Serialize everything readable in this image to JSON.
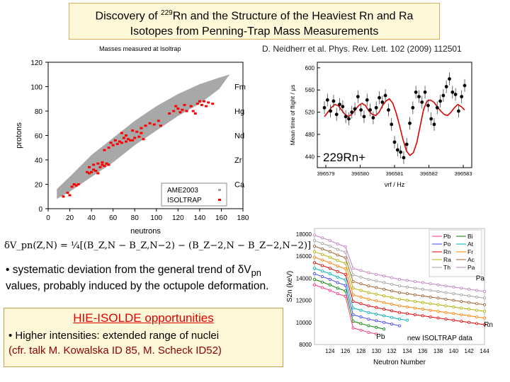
{
  "title": {
    "line1_prefix": "Discovery of ",
    "sup": "229",
    "line1_suffix": "Rn and the Structure of the Heaviest Rn and Ra",
    "line2": "Isotopes from Penning-Trap Mass Measurements"
  },
  "citation": "D. Neidherr et al. Phys. Rev. Lett. 102 (2009) 112501",
  "formula": "δV_pn(Z,N) = ¼[(B_Z,N − B_Z,N−2) − (B_Z−2,N − B_Z−2,N−2)]",
  "bullet1": {
    "pre": "• systematic deviation from the general trend of ",
    "delta": "δV",
    "sub": "pn",
    "post": " values, probably induced by the octupole deformation."
  },
  "hie": {
    "title": "HIE-ISOLDE opportunities",
    "line1": "• Higher intensities: extended range of nuclei",
    "line2": "(cfr. talk M. Kowalska ID 85, M. Scheck ID52)"
  },
  "chart_data": [
    {
      "type": "scatter",
      "title": "Masses measured at Isoltrap",
      "xlabel": "neutrons",
      "ylabel": "protons",
      "xlim": [
        0,
        180
      ],
      "ylim": [
        0,
        120
      ],
      "xticks": [
        0,
        20,
        40,
        60,
        80,
        100,
        120,
        140,
        160,
        180
      ],
      "yticks": [
        0,
        20,
        40,
        60,
        80,
        100,
        120
      ],
      "element_labels": [
        {
          "name": "Fm",
          "z": 100
        },
        {
          "name": "Hg",
          "z": 80
        },
        {
          "name": "Nd",
          "z": 60
        },
        {
          "name": "Zr",
          "z": 40
        },
        {
          "name": "Ca",
          "z": 20
        }
      ],
      "legend": [
        "AME2003",
        "ISOLTRAP"
      ],
      "series": [
        {
          "name": "ISOLTRAP",
          "color": "#ff0000",
          "points": [
            [
              14,
              10
            ],
            [
              18,
              13
            ],
            [
              20,
              11
            ],
            [
              22,
              18
            ],
            [
              26,
              19
            ],
            [
              24,
              20
            ],
            [
              28,
              20
            ],
            [
              36,
              30
            ],
            [
              38,
              29
            ],
            [
              40,
              30
            ],
            [
              42,
              32
            ],
            [
              44,
              31
            ],
            [
              46,
              29
            ],
            [
              48,
              34
            ],
            [
              50,
              36
            ],
            [
              52,
              35
            ],
            [
              38,
              34
            ],
            [
              42,
              36
            ],
            [
              46,
              37
            ],
            [
              50,
              38
            ],
            [
              54,
              37
            ],
            [
              56,
              36
            ],
            [
              52,
              48
            ],
            [
              56,
              50
            ],
            [
              60,
              52
            ],
            [
              64,
              53
            ],
            [
              68,
              54
            ],
            [
              72,
              55
            ],
            [
              76,
              56
            ],
            [
              58,
              54
            ],
            [
              62,
              56
            ],
            [
              66,
              55
            ],
            [
              70,
              58
            ],
            [
              74,
              57
            ],
            [
              78,
              56
            ],
            [
              80,
              58
            ],
            [
              84,
              59
            ],
            [
              88,
              57
            ],
            [
              86,
              62
            ],
            [
              82,
              63
            ],
            [
              78,
              64
            ],
            [
              72,
              60
            ],
            [
              68,
              62
            ],
            [
              86,
              66
            ],
            [
              90,
              68
            ],
            [
              94,
              70
            ],
            [
              98,
              69
            ],
            [
              102,
              72
            ],
            [
              104,
              68
            ],
            [
              112,
              78
            ],
            [
              116,
              80
            ],
            [
              120,
              82
            ],
            [
              124,
              81
            ],
            [
              128,
              80
            ],
            [
              132,
              84
            ],
            [
              134,
              80
            ],
            [
              136,
              78
            ],
            [
              138,
              86
            ],
            [
              142,
              85
            ],
            [
              146,
              84
            ],
            [
              140,
              88
            ],
            [
              144,
              88
            ],
            [
              148,
              87
            ],
            [
              152,
              86
            ],
            [
              126,
              85
            ],
            [
              118,
              84
            ],
            [
              122,
              79
            ]
          ]
        }
      ]
    },
    {
      "type": "line",
      "xlabel": "νrf / Hz",
      "ylabel": "Mean time of flight / μs",
      "ylim": [
        420,
        610
      ],
      "yticks": [
        440,
        480,
        520,
        560,
        600
      ],
      "xticks": [
        "396579",
        "396580",
        "396581",
        "396582",
        "396583"
      ],
      "annotation": "229Rn+",
      "fit_y": [
        512,
        520,
        528,
        534,
        532,
        524,
        516,
        512,
        516,
        524,
        532,
        536,
        532,
        522,
        516,
        514,
        520,
        532,
        540,
        544,
        536,
        518,
        495,
        470,
        450,
        442,
        447,
        465,
        495,
        525,
        540,
        542,
        538,
        530,
        522,
        516,
        514,
        520,
        528,
        534,
        530,
        524
      ],
      "points_y": [
        528,
        542,
        522,
        540,
        516,
        534,
        530,
        512,
        508,
        520,
        526,
        548,
        524,
        512,
        542,
        524,
        510,
        528,
        546,
        538,
        550,
        524,
        498,
        466,
        452,
        448,
        438,
        462,
        500,
        528,
        556,
        548,
        538,
        556,
        532,
        508,
        498,
        528,
        540,
        550,
        566,
        580,
        556,
        552,
        522,
        548,
        568
      ]
    },
    {
      "type": "line",
      "xlabel": "Neutron Number",
      "ylabel": "S2n (keV)",
      "x": [
        122,
        123,
        124,
        125,
        126,
        127,
        128,
        129,
        130,
        131,
        132,
        133,
        134,
        135,
        136,
        137,
        138,
        139,
        140,
        141,
        142,
        143,
        144
      ],
      "ylim": [
        8000,
        18500
      ],
      "yticks": [
        8000,
        10000,
        12000,
        14000,
        16000,
        18000
      ],
      "xticks": [
        124,
        126,
        128,
        130,
        132,
        134,
        136,
        138,
        140,
        142,
        144
      ],
      "legend_left": [
        "Pb",
        "Po",
        "Rn",
        "Ra",
        "Th"
      ],
      "legend_right": [
        "Bi",
        "At",
        "Fr",
        "Ac",
        "Pa"
      ],
      "annotations": [
        "Pa",
        "Rn",
        "Pb",
        "new ISOLTRAP data"
      ],
      "series": [
        {
          "name": "Pa",
          "color": "#c080c0",
          "values": [
            17900,
            17650,
            17400,
            17100,
            16850,
            14900,
            14700,
            14500,
            14350,
            14200,
            14050,
            13900,
            13800,
            13700,
            13600,
            13500,
            13400,
            13300,
            13200,
            13100,
            13000,
            12900,
            12800
          ]
        },
        {
          "name": "Th",
          "color": "#a0a0a0",
          "values": [
            17400,
            17150,
            16900,
            16600,
            16350,
            14300,
            14100,
            13900,
            13750,
            13600,
            13450,
            13300,
            13200,
            13100,
            13000,
            12900,
            12800,
            12700,
            12600,
            12500,
            12400,
            12300,
            12200
          ]
        },
        {
          "name": "Ac",
          "color": "#a06030",
          "values": [
            16900,
            16650,
            16400,
            16100,
            15850,
            13700,
            13500,
            13300,
            13150,
            13000,
            12850,
            12700,
            12600,
            12500,
            12400,
            12300,
            12200,
            12100,
            12000,
            11900,
            11800,
            11700,
            11600
          ]
        },
        {
          "name": "Ra",
          "color": "#b0b000",
          "values": [
            16400,
            16150,
            15900,
            15600,
            15350,
            13100,
            12900,
            12700,
            12550,
            12400,
            12250,
            12100,
            12000,
            11900,
            11800,
            11700,
            11600,
            11500,
            11400,
            11300,
            11200,
            11100,
            11000
          ]
        },
        {
          "name": "Fr",
          "color": "#ff8000",
          "values": [
            15900,
            15650,
            15400,
            15100,
            14850,
            12500,
            12300,
            12100,
            11950,
            11800,
            11650,
            11500,
            11400,
            11300,
            11200,
            11100,
            11000,
            10900,
            10800,
            10700,
            10600,
            10500,
            10400
          ]
        },
        {
          "name": "Rn",
          "color": "#e00000",
          "values": [
            15400,
            15150,
            14900,
            14600,
            14350,
            11900,
            11700,
            11500,
            11350,
            11200,
            11050,
            10900,
            10800,
            10700,
            10600,
            10500,
            10400,
            10300,
            10200,
            10100,
            10000,
            9900,
            9800
          ]
        },
        {
          "name": "At",
          "color": "#00b0b0",
          "values": [
            14900,
            14650,
            14400,
            14100,
            13850,
            11300,
            11100,
            10900,
            10750,
            10600,
            10450,
            10300,
            10200,
            null,
            null,
            null,
            null,
            null,
            null,
            null,
            null,
            null,
            null
          ]
        },
        {
          "name": "Po",
          "color": "#4040ff",
          "values": [
            14400,
            14150,
            13900,
            13600,
            13350,
            10700,
            10500,
            10300,
            10150,
            10000,
            9850,
            9700,
            null,
            null,
            null,
            null,
            null,
            null,
            null,
            null,
            null,
            null,
            null
          ]
        },
        {
          "name": "Bi",
          "color": "#008000",
          "values": [
            13900,
            13650,
            13400,
            13100,
            12850,
            10100,
            9900,
            9700,
            9550,
            9400,
            null,
            null,
            null,
            null,
            null,
            null,
            null,
            null,
            null,
            null,
            null,
            null,
            null
          ]
        },
        {
          "name": "Pb",
          "color": "#ff3080",
          "values": [
            13400,
            13150,
            12900,
            12600,
            12350,
            9500,
            9300,
            9100,
            8950,
            null,
            null,
            null,
            null,
            null,
            null,
            null,
            null,
            null,
            null,
            null,
            null,
            null,
            null
          ]
        }
      ]
    }
  ]
}
